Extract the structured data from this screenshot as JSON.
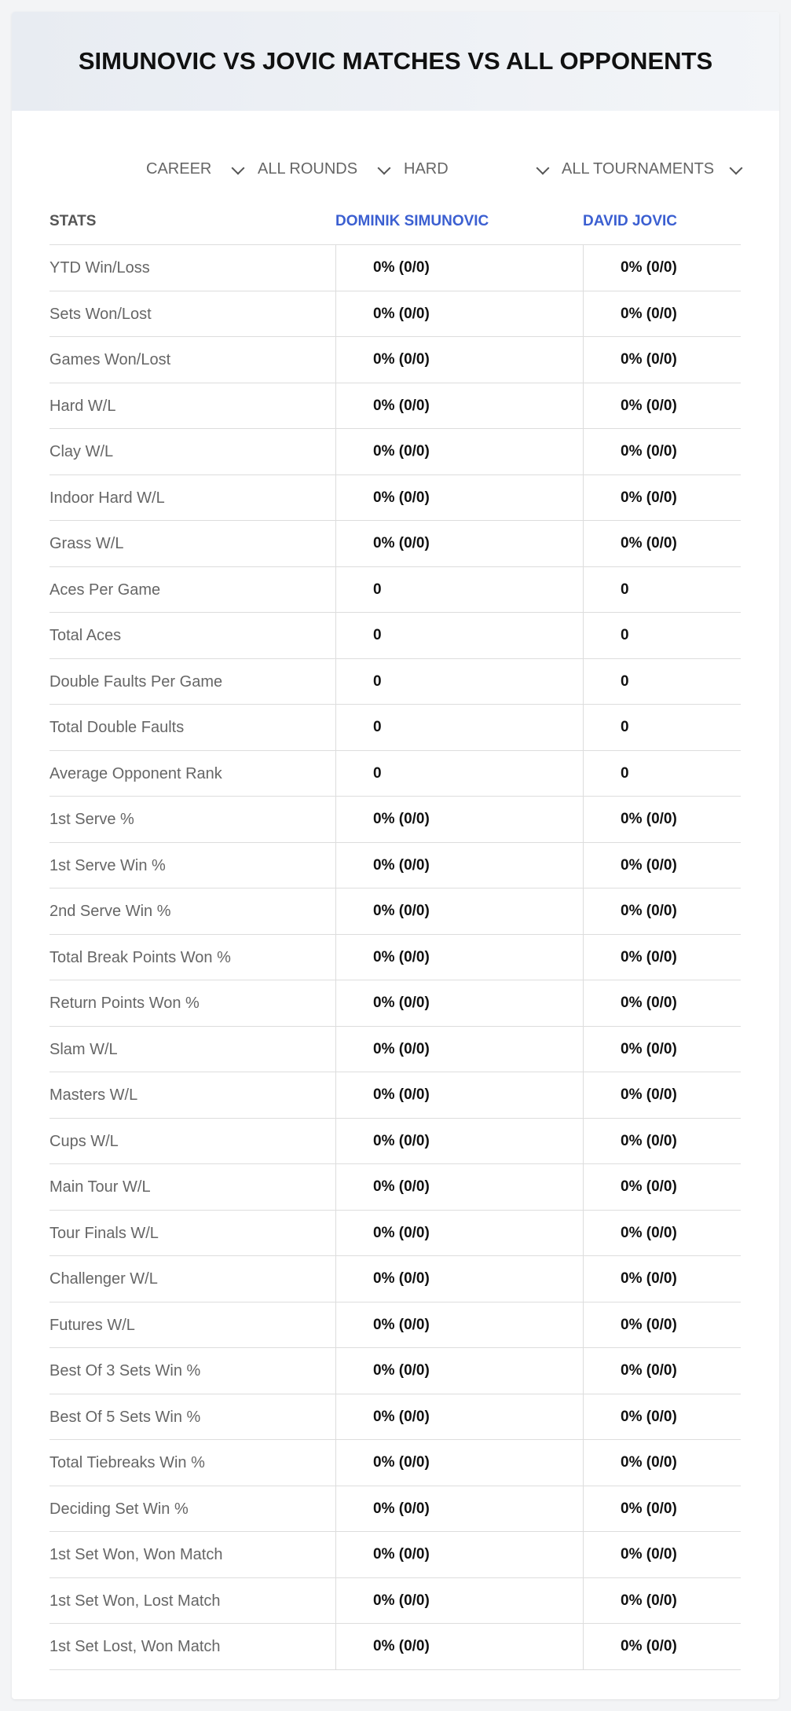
{
  "header": {
    "title": "SIMUNOVIC VS JOVIC MATCHES VS ALL OPPONENTS"
  },
  "filters": [
    "CAREER",
    "ALL ROUNDS",
    "HARD",
    "ALL TOURNAMENTS"
  ],
  "table": {
    "columns": [
      "STATS",
      "DOMINIK SIMUNOVIC",
      "DAVID JOVIC"
    ],
    "rows": [
      [
        "YTD Win/Loss",
        "0% (0/0)",
        "0% (0/0)"
      ],
      [
        "Sets Won/Lost",
        "0% (0/0)",
        "0% (0/0)"
      ],
      [
        "Games Won/Lost",
        "0% (0/0)",
        "0% (0/0)"
      ],
      [
        "Hard W/L",
        "0% (0/0)",
        "0% (0/0)"
      ],
      [
        "Clay W/L",
        "0% (0/0)",
        "0% (0/0)"
      ],
      [
        "Indoor Hard W/L",
        "0% (0/0)",
        "0% (0/0)"
      ],
      [
        "Grass W/L",
        "0% (0/0)",
        "0% (0/0)"
      ],
      [
        "Aces Per Game",
        "0",
        "0"
      ],
      [
        "Total Aces",
        "0",
        "0"
      ],
      [
        "Double Faults Per Game",
        "0",
        "0"
      ],
      [
        "Total Double Faults",
        "0",
        "0"
      ],
      [
        "Average Opponent Rank",
        "0",
        "0"
      ],
      [
        "1st Serve %",
        "0% (0/0)",
        "0% (0/0)"
      ],
      [
        "1st Serve Win %",
        "0% (0/0)",
        "0% (0/0)"
      ],
      [
        "2nd Serve Win %",
        "0% (0/0)",
        "0% (0/0)"
      ],
      [
        "Total Break Points Won %",
        "0% (0/0)",
        "0% (0/0)"
      ],
      [
        "Return Points Won %",
        "0% (0/0)",
        "0% (0/0)"
      ],
      [
        "Slam W/L",
        "0% (0/0)",
        "0% (0/0)"
      ],
      [
        "Masters W/L",
        "0% (0/0)",
        "0% (0/0)"
      ],
      [
        "Cups W/L",
        "0% (0/0)",
        "0% (0/0)"
      ],
      [
        "Main Tour W/L",
        "0% (0/0)",
        "0% (0/0)"
      ],
      [
        "Tour Finals W/L",
        "0% (0/0)",
        "0% (0/0)"
      ],
      [
        "Challenger W/L",
        "0% (0/0)",
        "0% (0/0)"
      ],
      [
        "Futures W/L",
        "0% (0/0)",
        "0% (0/0)"
      ],
      [
        "Best Of 3 Sets Win %",
        "0% (0/0)",
        "0% (0/0)"
      ],
      [
        "Best Of 5 Sets Win %",
        "0% (0/0)",
        "0% (0/0)"
      ],
      [
        "Total Tiebreaks Win %",
        "0% (0/0)",
        "0% (0/0)"
      ],
      [
        "Deciding Set Win %",
        "0% (0/0)",
        "0% (0/0)"
      ],
      [
        "1st Set Won, Won Match",
        "0% (0/0)",
        "0% (0/0)"
      ],
      [
        "1st Set Won, Lost Match",
        "0% (0/0)",
        "0% (0/0)"
      ],
      [
        "1st Set Lost, Won Match",
        "0% (0/0)",
        "0% (0/0)"
      ]
    ]
  }
}
